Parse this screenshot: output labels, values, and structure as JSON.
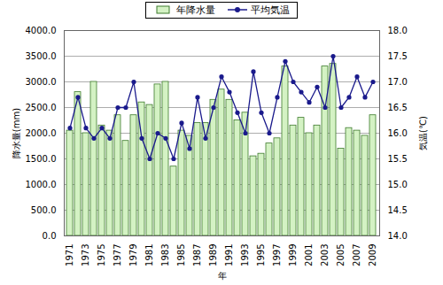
{
  "chart_data": {
    "type": "bar",
    "xlabel": "年",
    "ylabel": "降水量(mm)",
    "y2label": "気温(℃)",
    "legend": "top",
    "grid": true,
    "categories": [
      "1971",
      null,
      "1973",
      null,
      "1975",
      null,
      "1977",
      null,
      "1979",
      null,
      "1981",
      null,
      "1983",
      null,
      "1985",
      null,
      "1987",
      null,
      "1989",
      null,
      "1991",
      null,
      "1993",
      null,
      "1995",
      null,
      "1997",
      null,
      "1999",
      null,
      "2001",
      null,
      "2003",
      null,
      "2005",
      null,
      "2007",
      null,
      "2009"
    ],
    "ylim": [
      0,
      4000
    ],
    "yticks": [
      {
        "value": 0,
        "label": "0.0"
      },
      {
        "value": 500,
        "label": "500.0"
      },
      {
        "value": 1000,
        "label": "1000.0"
      },
      {
        "value": 1500,
        "label": "1500.0"
      },
      {
        "value": 2000,
        "label": "2000.0"
      },
      {
        "value": 2500,
        "label": "2500.0"
      },
      {
        "value": 3000,
        "label": "3000.0"
      },
      {
        "value": 3500,
        "label": "3500.0"
      },
      {
        "value": 4000,
        "label": "4000.0"
      }
    ],
    "y2lim": [
      14,
      18
    ],
    "y2ticks": [
      {
        "value": 14,
        "label": "14.0"
      },
      14.5,
      {
        "value": 15,
        "label": "15.0"
      },
      15.5,
      {
        "value": 16,
        "label": "16.0"
      },
      16.5,
      {
        "value": 17,
        "label": "17.0"
      },
      17.5,
      {
        "value": 18,
        "label": "18.0"
      }
    ],
    "series": [
      {
        "name": "年降水量",
        "type": "bar",
        "color": "#d4f2c4",
        "values": [
          2050,
          2800,
          2000,
          3000,
          2150,
          2050,
          2350,
          1850,
          2350,
          2600,
          2550,
          2950,
          3000,
          1350,
          2050,
          1950,
          2200,
          2200,
          2650,
          2850,
          2650,
          2250,
          2400,
          1550,
          1600,
          1800,
          1900,
          3300,
          2150,
          2300,
          2000,
          2150,
          3300,
          3350,
          1700,
          2100,
          2050,
          1950,
          2350
        ]
      },
      {
        "name": "平均気温",
        "type": "line",
        "axis": "y2",
        "color": "#1a1a8c",
        "marker": "circle",
        "values": [
          16.1,
          16.7,
          16.1,
          15.9,
          16.1,
          15.9,
          16.5,
          16.5,
          17.0,
          15.9,
          15.5,
          16.0,
          15.9,
          15.5,
          16.2,
          15.7,
          16.7,
          15.9,
          16.5,
          17.1,
          16.8,
          16.4,
          16.0,
          17.2,
          16.4,
          16.0,
          16.7,
          17.4,
          17.0,
          16.8,
          16.6,
          16.9,
          16.5,
          17.5,
          16.5,
          16.7,
          17.1,
          16.7,
          17.0
        ]
      }
    ]
  }
}
